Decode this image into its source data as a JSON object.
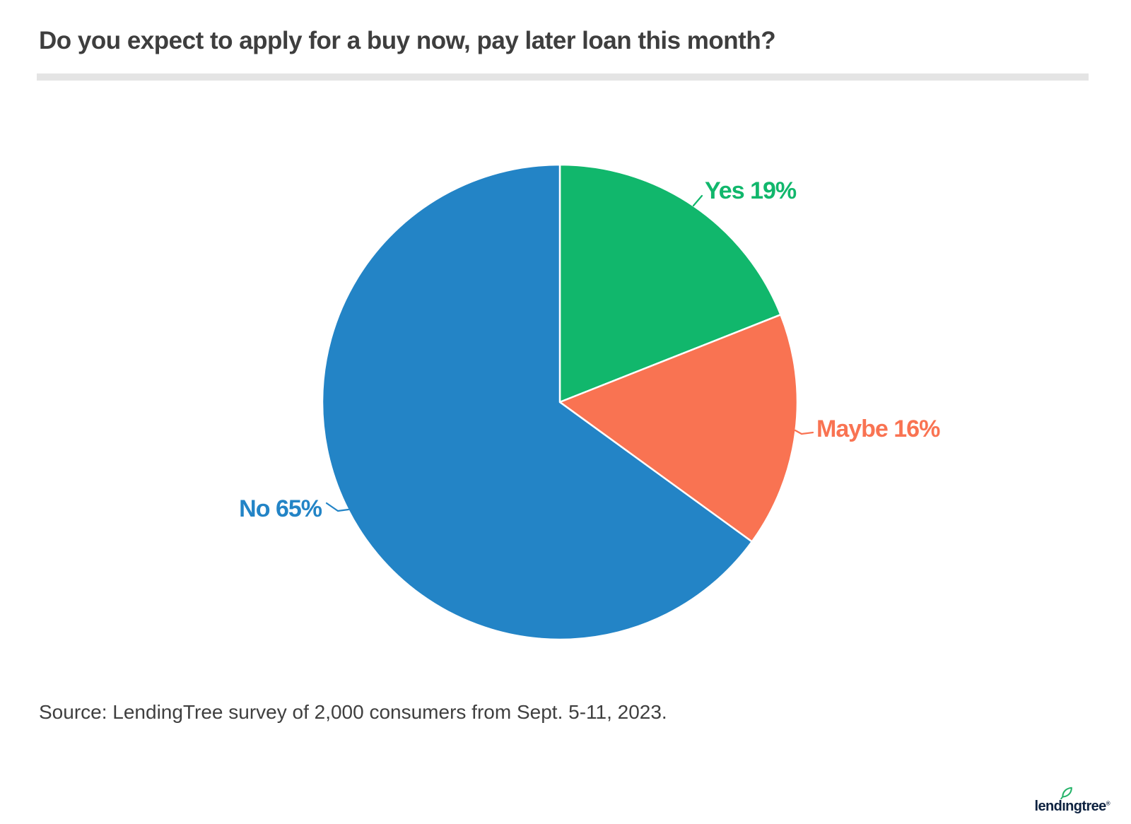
{
  "header": {
    "title": "Do you expect to apply for a buy now, pay later loan this month?"
  },
  "chart_data": {
    "type": "pie",
    "title": "Do you expect to apply for a buy now, pay later loan this month?",
    "start_angle": "top",
    "direction": "clockwise",
    "legend": "none",
    "labels_position": "outside-with-connectors",
    "segments": [
      {
        "label": "Yes",
        "value": 19,
        "display": "Yes 19%",
        "color": "#11B76C"
      },
      {
        "label": "Maybe",
        "value": 16,
        "display": "Maybe 16%",
        "color": "#F97352"
      },
      {
        "label": "No",
        "value": 65,
        "display": "No 65%",
        "color": "#2384C6"
      }
    ]
  },
  "source": {
    "text": "Source: LendingTree survey of 2,000 consumers from Sept. 5-11, 2023."
  },
  "logo": {
    "full_name": "lendingtree",
    "part1": "lend",
    "part2": "ı",
    "part3": "ngtree",
    "registered": "®",
    "text_color": "#0e2240",
    "leaf_color": "#25b369"
  },
  "style": {
    "background": "#FFFFFF",
    "title_color": "#3E3E3E",
    "divider_color": "#E4E4E4",
    "source_color": "#3F3F3F",
    "slice_border_color": "#FFFFFF"
  }
}
